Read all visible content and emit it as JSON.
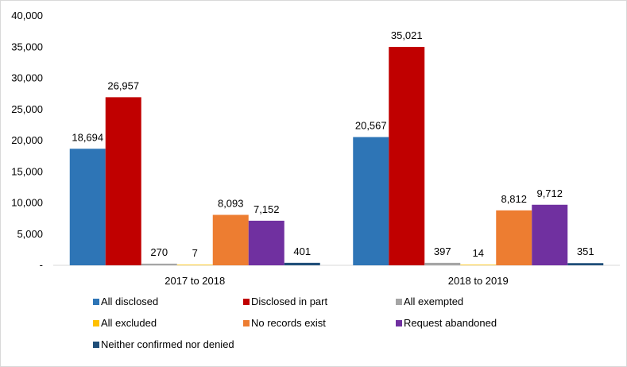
{
  "chart_data": {
    "type": "bar",
    "title": "",
    "xlabel": "",
    "ylabel": "",
    "ylim": [
      0,
      40000
    ],
    "yticks": [
      0,
      5000,
      10000,
      15000,
      20000,
      25000,
      30000,
      35000,
      40000
    ],
    "ytick_labels": [
      "-",
      "5,000",
      "10,000",
      "15,000",
      "20,000",
      "25,000",
      "30,000",
      "35,000",
      "40,000"
    ],
    "categories": [
      "2017 to 2018",
      "2018 to 2019"
    ],
    "series": [
      {
        "name": "All disclosed",
        "color": "#2e75b6",
        "values": [
          18694,
          20567
        ],
        "labels": [
          "18,694",
          "20,567"
        ]
      },
      {
        "name": "Disclosed in part",
        "color": "#c00000",
        "values": [
          26957,
          35021
        ],
        "labels": [
          "26,957",
          "35,021"
        ]
      },
      {
        "name": "All exempted",
        "color": "#a5a5a5",
        "values": [
          270,
          397
        ],
        "labels": [
          "270",
          "397"
        ]
      },
      {
        "name": "All excluded",
        "color": "#ffc000",
        "values": [
          7,
          14
        ],
        "labels": [
          "7",
          "14"
        ]
      },
      {
        "name": "No records exist",
        "color": "#ed7d31",
        "values": [
          8093,
          8812
        ],
        "labels": [
          "8,093",
          "8,812"
        ]
      },
      {
        "name": "Request abandoned",
        "color": "#7030a0",
        "values": [
          7152,
          9712
        ],
        "labels": [
          "7,152",
          "9,712"
        ]
      },
      {
        "name": "Neither confirmed nor denied",
        "color": "#1f4e79",
        "values": [
          401,
          351
        ],
        "labels": [
          "401",
          "351"
        ]
      }
    ],
    "legend_position": "bottom",
    "grid": false
  }
}
